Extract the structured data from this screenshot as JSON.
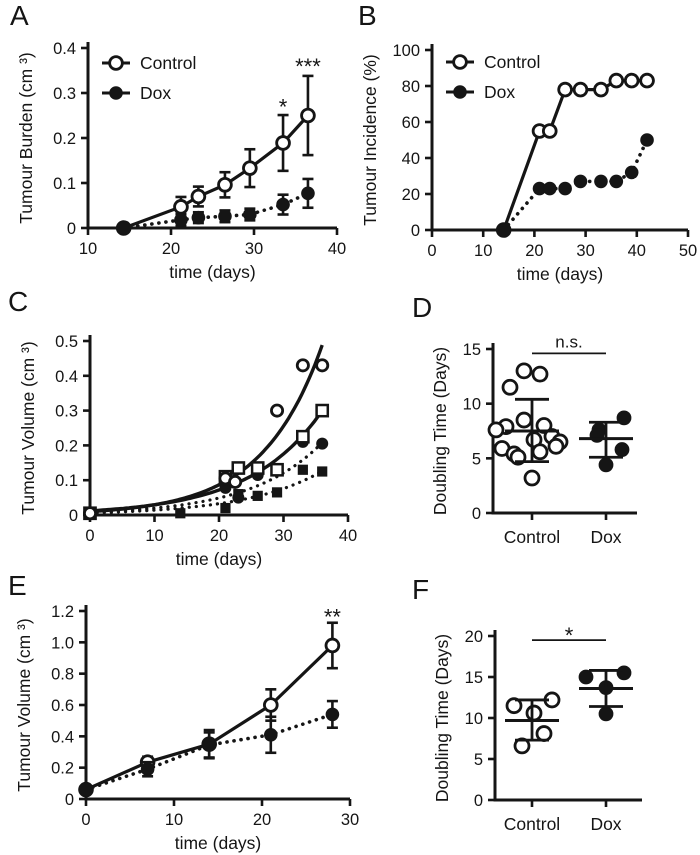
{
  "chart_data": [
    {
      "panel": "A",
      "type": "line",
      "xlabel": "time (days)",
      "ylabel": "Tumour Burden (cm ³)",
      "xlim": [
        10,
        40
      ],
      "ylim": [
        0,
        0.4
      ],
      "xticks": [
        10,
        20,
        30,
        40
      ],
      "yticks": [
        0,
        0.1,
        0.2,
        0.3,
        0.4
      ],
      "ytick_labels": [
        "0",
        "0.1",
        "0.2",
        "0.3",
        "0.4"
      ],
      "legend": true,
      "series": [
        {
          "name": "Control",
          "marker": "circle-open",
          "line": "solid",
          "x": [
            14.3,
            21.2,
            23.3,
            26.5,
            29.5,
            33.5,
            36.5
          ],
          "y": [
            0,
            0.047,
            0.07,
            0.096,
            0.133,
            0.189,
            0.25
          ],
          "err": [
            0,
            0.022,
            0.022,
            0.028,
            0.042,
            0.062,
            0.088
          ]
        },
        {
          "name": "Dox",
          "marker": "circle-filled",
          "line": "dotted",
          "x": [
            14.3,
            21.2,
            23.3,
            26.5,
            29.5,
            33.5,
            36.5
          ],
          "y": [
            0,
            0.018,
            0.023,
            0.026,
            0.03,
            0.052,
            0.077
          ],
          "err": [
            0,
            0.013,
            0.012,
            0.013,
            0.013,
            0.022,
            0.032
          ]
        }
      ],
      "annotations": [
        {
          "text": "*",
          "x": 33.5,
          "y": 0.272
        },
        {
          "text": "***",
          "x": 36.5,
          "y": 0.362
        }
      ]
    },
    {
      "panel": "B",
      "type": "line",
      "xlabel": "time (days)",
      "ylabel": "Tumour Incidence (%)",
      "xlim": [
        0,
        50
      ],
      "ylim": [
        0,
        100
      ],
      "xticks": [
        0,
        10,
        20,
        30,
        40,
        50
      ],
      "yticks": [
        0,
        20,
        40,
        60,
        80,
        100
      ],
      "legend": true,
      "series": [
        {
          "name": "Control",
          "marker": "circle-open",
          "line": "solid",
          "x": [
            14,
            21,
            23,
            26,
            29,
            33,
            36,
            39,
            42
          ],
          "y": [
            0,
            55,
            55,
            78,
            78,
            78,
            83,
            83,
            83
          ]
        },
        {
          "name": "Dox",
          "marker": "circle-filled",
          "line": "dotted",
          "x": [
            14,
            21,
            23,
            26,
            29,
            33,
            36,
            39,
            42
          ],
          "y": [
            0,
            23,
            23,
            23,
            27,
            27,
            27,
            32,
            50
          ]
        }
      ],
      "annotations": []
    },
    {
      "panel": "C",
      "type": "scatter-fit",
      "xlabel": "time (days)",
      "ylabel": "Tumour Volume (cm ³)",
      "xlim": [
        0,
        40
      ],
      "ylim": [
        0,
        0.5
      ],
      "xticks": [
        0,
        10,
        20,
        30,
        40
      ],
      "yticks": [
        0,
        0.1,
        0.2,
        0.3,
        0.4,
        0.5
      ],
      "ytick_labels": [
        "0",
        "0.1",
        "0.2",
        "0.3",
        "0.4",
        "0.5"
      ],
      "series": [
        {
          "marker": "square-filled",
          "line": "dotted",
          "fit": {
            "v0": 0.006,
            "k": 0.0846
          },
          "points": [
            [
              0,
              0.003
            ],
            [
              14,
              0.005
            ],
            [
              21,
              0.02
            ],
            [
              23,
              0.06
            ],
            [
              26,
              0.055
            ],
            [
              29,
              0.065
            ],
            [
              33,
              0.13
            ],
            [
              36,
              0.125
            ]
          ]
        },
        {
          "marker": "circle-filled",
          "line": "dotted",
          "fit": {
            "v0": 0.008,
            "k": 0.0905
          },
          "points": [
            [
              0,
              0.003
            ],
            [
              21,
              0.078
            ],
            [
              23,
              0.05
            ],
            [
              26,
              0.115
            ],
            [
              29,
              0.13
            ],
            [
              33,
              0.21
            ],
            [
              36,
              0.205
            ]
          ]
        },
        {
          "marker": "square-open",
          "line": "solid",
          "fit": {
            "v0": 0.012,
            "k": 0.0894
          },
          "points": [
            [
              0,
              0.005
            ],
            [
              21,
              0.11
            ],
            [
              23,
              0.135
            ],
            [
              26,
              0.135
            ],
            [
              29,
              0.13
            ],
            [
              33,
              0.225
            ],
            [
              36,
              0.3
            ]
          ]
        },
        {
          "marker": "circle-open",
          "line": "solid",
          "fit": {
            "v0": 0.01,
            "k": 0.108
          },
          "points": [
            [
              0,
              0.005
            ],
            [
              21,
              0.105
            ],
            [
              22.5,
              0.095
            ],
            [
              29,
              0.3
            ],
            [
              33,
              0.43
            ],
            [
              36,
              0.43
            ]
          ]
        }
      ]
    },
    {
      "panel": "D",
      "type": "dotplot",
      "ylabel": "Doubling Time (Days)",
      "ylim": [
        0,
        15
      ],
      "yticks": [
        0,
        5,
        10,
        15
      ],
      "groups": [
        {
          "label": "Control",
          "marker": "circle-open",
          "mean": 7.5,
          "sd_low": 4.7,
          "sd_high": 10.4,
          "points": [
            [
              -8,
              13.0
            ],
            [
              8,
              12.7
            ],
            [
              -22,
              11.5
            ],
            [
              -8,
              8.5
            ],
            [
              12,
              8.0
            ],
            [
              -26,
              7.9
            ],
            [
              -36,
              7.6
            ],
            [
              20,
              7.0
            ],
            [
              2,
              6.7
            ],
            [
              28,
              6.5
            ],
            [
              24,
              6.1
            ],
            [
              -30,
              5.9
            ],
            [
              8,
              5.6
            ],
            [
              -18,
              5.4
            ],
            [
              -14,
              5.1
            ],
            [
              0,
              3.2
            ]
          ]
        },
        {
          "label": "Dox",
          "marker": "circle-filled",
          "mean": 6.8,
          "sd_low": 5.1,
          "sd_high": 8.3,
          "points": [
            [
              -7,
              7.6
            ],
            [
              -9,
              7.1
            ],
            [
              18,
              8.7
            ],
            [
              16,
              5.8
            ],
            [
              0,
              4.4
            ]
          ]
        }
      ],
      "significance": {
        "text": "n.s.",
        "y": 14.6
      }
    },
    {
      "panel": "E",
      "type": "line",
      "xlabel": "time (days)",
      "ylabel": "Tumour Volume (cm ³)",
      "xlim": [
        0,
        30
      ],
      "ylim": [
        0,
        1.2
      ],
      "xticks": [
        0,
        10,
        20,
        30
      ],
      "yticks": [
        0,
        0.2,
        0.4,
        0.6,
        0.8,
        1.0,
        1.2
      ],
      "ytick_labels": [
        "0",
        "0.2",
        "0.4",
        "0.6",
        "0.8",
        "1.0",
        "1.2"
      ],
      "series": [
        {
          "name": "Control",
          "marker": "circle-open",
          "line": "solid",
          "x": [
            0,
            7,
            14,
            21,
            28
          ],
          "y": [
            0.06,
            0.235,
            0.35,
            0.6,
            0.98
          ],
          "err": [
            0.012,
            0.035,
            0.09,
            0.1,
            0.145
          ]
        },
        {
          "name": "Dox",
          "marker": "circle-filled",
          "line": "dotted",
          "x": [
            0,
            7,
            14,
            21,
            28
          ],
          "y": [
            0.06,
            0.19,
            0.345,
            0.41,
            0.54
          ],
          "err": [
            0.012,
            0.045,
            0.08,
            0.115,
            0.085
          ]
        }
      ],
      "annotations": [
        {
          "text": "**",
          "x": 28,
          "y": 1.17
        }
      ]
    },
    {
      "panel": "F",
      "type": "dotplot",
      "ylabel": "Doubling Time (Days)",
      "ylim": [
        0,
        20
      ],
      "yticks": [
        0,
        5,
        10,
        15,
        20
      ],
      "groups": [
        {
          "label": "Control",
          "marker": "circle-open",
          "mean": 9.7,
          "sd_low": 7.3,
          "sd_high": 12.2,
          "points": [
            [
              -18,
              11.5
            ],
            [
              20,
              12.2
            ],
            [
              2,
              10.6
            ],
            [
              12,
              8.1
            ],
            [
              -10,
              6.6
            ]
          ]
        },
        {
          "label": "Dox",
          "marker": "circle-filled",
          "mean": 13.6,
          "sd_low": 11.4,
          "sd_high": 15.8,
          "points": [
            [
              -20,
              15.0
            ],
            [
              18,
              15.5
            ],
            [
              0,
              13.7
            ],
            [
              0,
              10.5
            ]
          ]
        }
      ],
      "significance": {
        "text": "*",
        "y": 19.5
      }
    }
  ],
  "styles": {
    "ink_color": "#151515",
    "background_color": "#ffffff"
  }
}
